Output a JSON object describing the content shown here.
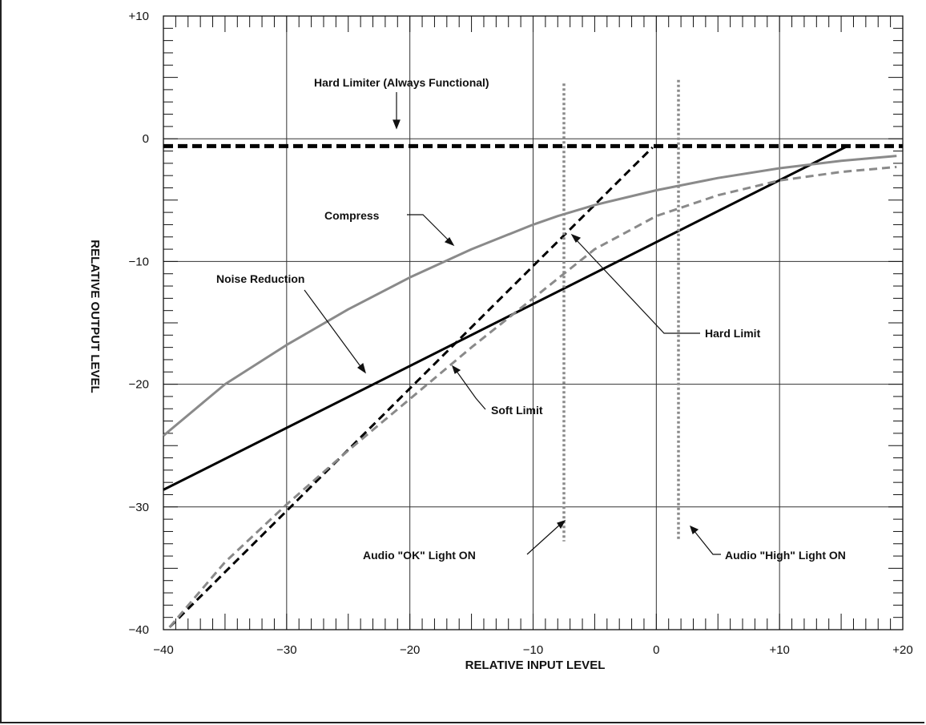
{
  "chart_data": {
    "type": "line",
    "title": "",
    "xlabel": "RELATIVE INPUT LEVEL",
    "ylabel": "RELATIVE OUTPUT LEVEL",
    "xlim": [
      -40,
      20
    ],
    "ylim": [
      -40,
      10
    ],
    "x_ticks": [
      -40,
      -30,
      -20,
      -10,
      0,
      10,
      20
    ],
    "x_tick_labels": [
      "−40",
      "−30",
      "−20",
      "−10",
      "0",
      "+10",
      "+20"
    ],
    "y_ticks": [
      10,
      0,
      -10,
      -20,
      -30,
      -40
    ],
    "y_tick_labels": [
      "+10",
      "0",
      "−10",
      "−20",
      "−30",
      "−40"
    ],
    "grid": true,
    "series": [
      {
        "name": "Hard Limiter (Always Functional)",
        "style": "dashed",
        "color": "#000000",
        "x": [
          -40,
          20
        ],
        "y": [
          -0.6,
          -0.6
        ]
      },
      {
        "name": "Hard Limit",
        "style": "dashed",
        "color": "#000000",
        "x": [
          -39.5,
          -0.3
        ],
        "y": [
          -39.8,
          -0.7
        ]
      },
      {
        "name": "Noise Reduction",
        "style": "solid",
        "color": "#000000",
        "x": [
          -40,
          15.5
        ],
        "y": [
          -28.6,
          -0.6
        ]
      },
      {
        "name": "Compress",
        "style": "solid",
        "color": "#8a8a8a",
        "x": [
          -40,
          -35,
          -30,
          -25,
          -20,
          -15,
          -10,
          -8,
          -5,
          0,
          5,
          10,
          15,
          19.5
        ],
        "y": [
          -24.2,
          -20.0,
          -16.8,
          -13.9,
          -11.3,
          -9.0,
          -7.0,
          -6.3,
          -5.4,
          -4.2,
          -3.2,
          -2.4,
          -1.8,
          -1.4
        ]
      },
      {
        "name": "Soft Limit",
        "style": "dashed",
        "color": "#8a8a8a",
        "x": [
          -39.5,
          -35,
          -30,
          -25,
          -20,
          -15,
          -10,
          -5,
          0,
          5,
          10,
          15,
          19.5
        ],
        "y": [
          -39.8,
          -34.5,
          -29.8,
          -25.4,
          -21.2,
          -17.0,
          -13.0,
          -9.0,
          -6.3,
          -4.6,
          -3.4,
          -2.7,
          -2.3
        ]
      },
      {
        "name": "Audio \"OK\" Light ON",
        "style": "dotted",
        "color": "#8a8a8a",
        "x": [
          -7.5,
          -7.5
        ],
        "y": [
          4.5,
          -32.8
        ]
      },
      {
        "name": "Audio \"High\" Light ON",
        "style": "dotted",
        "color": "#8a8a8a",
        "x": [
          1.8,
          1.8
        ],
        "y": [
          4.8,
          -32.8
        ]
      }
    ],
    "annotations": [
      {
        "text": "Hard Limiter (Always Functional)"
      },
      {
        "text": "Compress"
      },
      {
        "text": "Noise Reduction"
      },
      {
        "text": "Hard Limit"
      },
      {
        "text": "Soft Limit"
      },
      {
        "text": "Audio \"OK\" Light ON"
      },
      {
        "text": "Audio \"High\" Light ON"
      }
    ]
  }
}
